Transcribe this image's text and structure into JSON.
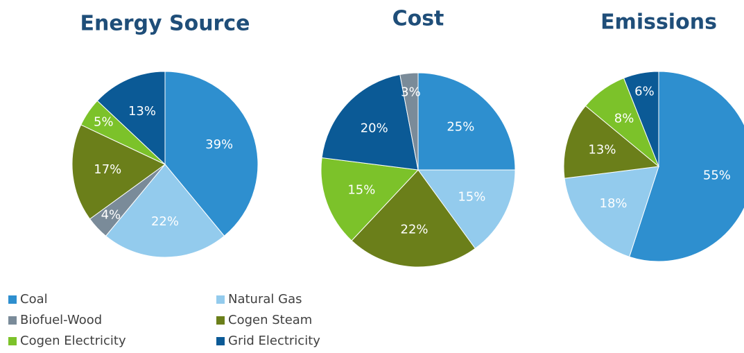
{
  "legend": [
    {
      "name": "Coal",
      "color": "#2e8fcf"
    },
    {
      "name": "Natural Gas",
      "color": "#93cbed"
    },
    {
      "name": "Biofuel-Wood",
      "color": "#7a8b99"
    },
    {
      "name": "Cogen Steam",
      "color": "#6b7f1a"
    },
    {
      "name": "Cogen Electricity",
      "color": "#7cc22a"
    },
    {
      "name": "Grid Electricity",
      "color": "#0b5a96"
    }
  ],
  "chart_data": [
    {
      "type": "pie",
      "title": "Energy Source",
      "categories": [
        "Coal",
        "Natural Gas",
        "Biofuel-Wood",
        "Cogen Steam",
        "Cogen Electricity",
        "Grid Electricity"
      ],
      "values": [
        39,
        22,
        4,
        17,
        5,
        13
      ],
      "value_labels": [
        "39%",
        "22%",
        "4%",
        "17%",
        "5%",
        "13%"
      ]
    },
    {
      "type": "pie",
      "title": "Cost",
      "categories": [
        "Coal",
        "Natural Gas",
        "Cogen Steam",
        "Cogen Electricity",
        "Grid Electricity",
        "Biofuel-Wood"
      ],
      "values": [
        25,
        15,
        22,
        15,
        20,
        3
      ],
      "value_labels": [
        "25%",
        "15%",
        "22%",
        "15%",
        "20%",
        "3%"
      ]
    },
    {
      "type": "pie",
      "title": "Emissions",
      "categories": [
        "Coal",
        "Natural Gas",
        "Cogen Steam",
        "Cogen Electricity",
        "Grid Electricity"
      ],
      "values": [
        55,
        18,
        13,
        8,
        6
      ],
      "value_labels": [
        "55%",
        "18%",
        "13%",
        "8%",
        "6%"
      ]
    }
  ]
}
